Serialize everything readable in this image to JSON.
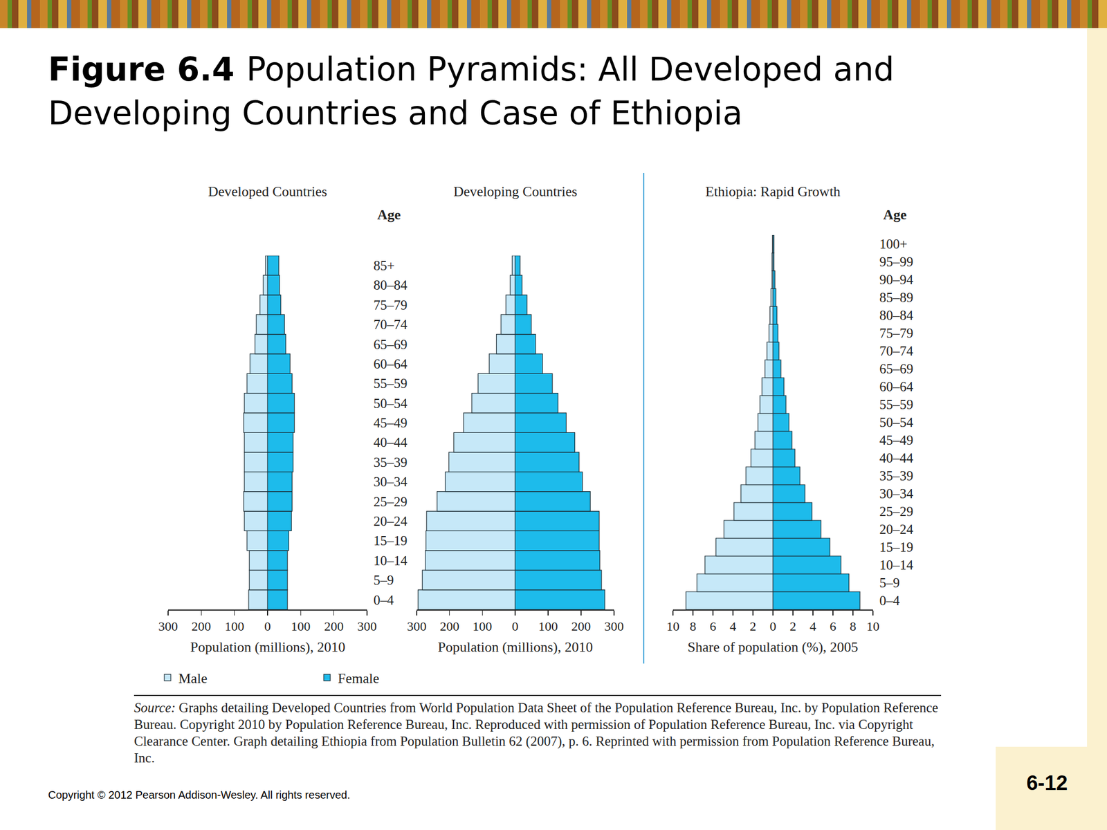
{
  "slide": {
    "title_bold": "Figure 6.4",
    "title": "Population Pyramids: All Developed and Developing Countries and Case of Ethiopia",
    "source_label": "Source:",
    "source": "Graphs detailing Developed Countries from World Population Data Sheet of the Population Reference Bureau, Inc. by Population Reference Bureau. Copyright 2010 by Population Reference Bureau, Inc. Reproduced with permission of Population Reference Bureau, Inc. via Copyright Clearance Center. Graph detailing Ethiopia from Population Bulletin 62 (2007), p. 6. Reprinted with permission from Population Reference Bureau, Inc.",
    "copyright": "Copyright © 2012 Pearson Addison-Wesley. All rights reserved.",
    "page": "6-12"
  },
  "chart_data": [
    {
      "type": "bar",
      "orientation": "horizontal",
      "title": "Developed Countries",
      "y_label": "Age",
      "x_label": "Population (millions), 2010",
      "categories": [
        "0–4",
        "5–9",
        "10–14",
        "15–19",
        "20–24",
        "25–29",
        "30–34",
        "35–39",
        "40–44",
        "45–49",
        "50–54",
        "55–59",
        "60–64",
        "65–69",
        "70–74",
        "75–79",
        "80–84",
        "85+"
      ],
      "series": [
        {
          "name": "Male",
          "color": "#c6e8f8",
          "values": [
            57,
            55,
            55,
            62,
            70,
            72,
            70,
            70,
            70,
            72,
            70,
            62,
            53,
            38,
            34,
            23,
            13,
            6
          ]
        },
        {
          "name": "Female",
          "color": "#1dbbeb",
          "values": [
            60,
            60,
            60,
            64,
            72,
            74,
            74,
            77,
            77,
            81,
            81,
            74,
            68,
            55,
            51,
            40,
            36,
            34
          ]
        }
      ],
      "xlim": [
        0,
        300
      ],
      "xticks": [
        0,
        100,
        200,
        300
      ],
      "legend": "bottom left",
      "tick_labels": true
    },
    {
      "type": "bar",
      "orientation": "horizontal",
      "title": "Developing Countries",
      "x_label": "Population (millions), 2010",
      "categories": [
        "0–4",
        "5–9",
        "10–14",
        "15–19",
        "20–24",
        "25–29",
        "30–34",
        "35–39",
        "40–44",
        "45–49",
        "50–54",
        "55–59",
        "60–64",
        "65–69",
        "70–74",
        "75–79",
        "80–84",
        "85+"
      ],
      "series": [
        {
          "name": "Male",
          "color": "#c6e8f8",
          "values": [
            296,
            283,
            274,
            272,
            270,
            238,
            213,
            202,
            187,
            157,
            132,
            113,
            79,
            57,
            43,
            28,
            15,
            9
          ]
        },
        {
          "name": "Female",
          "color": "#1dbbeb",
          "values": [
            272,
            262,
            257,
            255,
            255,
            228,
            204,
            194,
            181,
            155,
            130,
            113,
            83,
            62,
            49,
            36,
            21,
            15
          ]
        }
      ],
      "xlim": [
        0,
        300
      ],
      "xticks": [
        0,
        100,
        200,
        300
      ],
      "tick_labels": "x"
    },
    {
      "type": "bar",
      "orientation": "horizontal",
      "title": "Ethiopia: Rapid Growth",
      "y_label": "Age",
      "x_label": "Share of population (%), 2005",
      "categories": [
        "0–4",
        "5–9",
        "10–14",
        "15–19",
        "20–24",
        "25–29",
        "30–34",
        "35–39",
        "40–44",
        "45–49",
        "50–54",
        "55–59",
        "60–64",
        "65–69",
        "70–74",
        "75–79",
        "80–84",
        "85–89",
        "90–94",
        "95–99",
        "100+"
      ],
      "series": [
        {
          "name": "Male",
          "color": "#c6e8f8",
          "values": [
            8.7,
            7.6,
            6.8,
            5.7,
            4.9,
            3.9,
            3.2,
            2.7,
            2.2,
            1.8,
            1.5,
            1.3,
            1.1,
            0.8,
            0.6,
            0.4,
            0.3,
            0.2,
            0.1,
            0.1,
            0.05
          ]
        },
        {
          "name": "Female",
          "color": "#1dbbeb",
          "values": [
            8.7,
            7.6,
            6.8,
            5.7,
            4.8,
            3.9,
            3.2,
            2.7,
            2.2,
            1.9,
            1.6,
            1.3,
            1.1,
            0.8,
            0.6,
            0.5,
            0.4,
            0.3,
            0.2,
            0.1,
            0.1
          ]
        }
      ],
      "xlim": [
        0,
        10
      ],
      "xticks": [
        0,
        2,
        4,
        6,
        8,
        10
      ],
      "tick_labels": true
    }
  ]
}
